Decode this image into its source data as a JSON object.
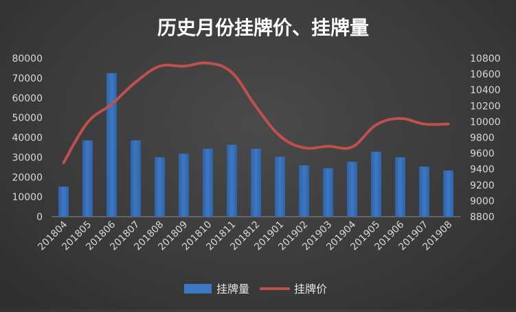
{
  "chart_data": {
    "type": "bar+line",
    "title": "历史月份挂牌价、挂牌量",
    "categories": [
      "201804",
      "201805",
      "201806",
      "201807",
      "201808",
      "201809",
      "201810",
      "201811",
      "201812",
      "201901",
      "201902",
      "201903",
      "201904",
      "201905",
      "201906",
      "201907",
      "201908"
    ],
    "series": [
      {
        "name": "挂牌量",
        "type": "bar",
        "axis": "left",
        "color": "#3d78c2",
        "values": [
          15200,
          38500,
          72500,
          38500,
          30000,
          31800,
          34300,
          36300,
          34300,
          30300,
          25900,
          24500,
          27700,
          32800,
          30000,
          25300,
          23300
        ]
      },
      {
        "name": "挂牌价",
        "type": "line",
        "axis": "right",
        "color": "#c0504d",
        "values": [
          9480,
          9990,
          10220,
          10500,
          10700,
          10700,
          10740,
          10620,
          10190,
          9820,
          9670,
          9690,
          9680,
          9960,
          10040,
          9970,
          9970
        ]
      }
    ],
    "yAxisLeft": {
      "min": 0,
      "max": 80000,
      "step": 10000
    },
    "yAxisRight": {
      "min": 8800,
      "max": 10800,
      "step": 200
    },
    "legend_position": "bottom",
    "grid": false
  }
}
